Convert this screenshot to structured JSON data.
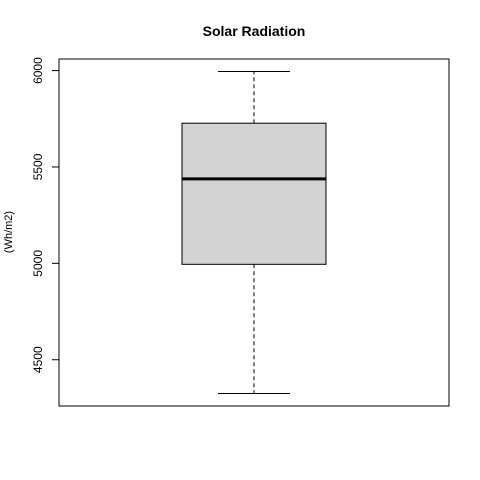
{
  "chart_data": {
    "type": "boxplot",
    "title": "Solar Radiation",
    "xlabel": "",
    "ylabel": "(Wh/m2)",
    "ylim": [
      4260,
      6060
    ],
    "yticks": [
      4500,
      5000,
      5500,
      6000
    ],
    "ytick_labels": [
      "4500",
      "5000",
      "5500",
      "6000"
    ],
    "grid": false,
    "legend": "none",
    "series": [
      {
        "min": 4325,
        "q1": 4995,
        "median": 5438,
        "q3": 5727,
        "max": 5995
      }
    ],
    "colors": {
      "box_fill": "#d3d3d3",
      "stroke": "#000000"
    }
  }
}
